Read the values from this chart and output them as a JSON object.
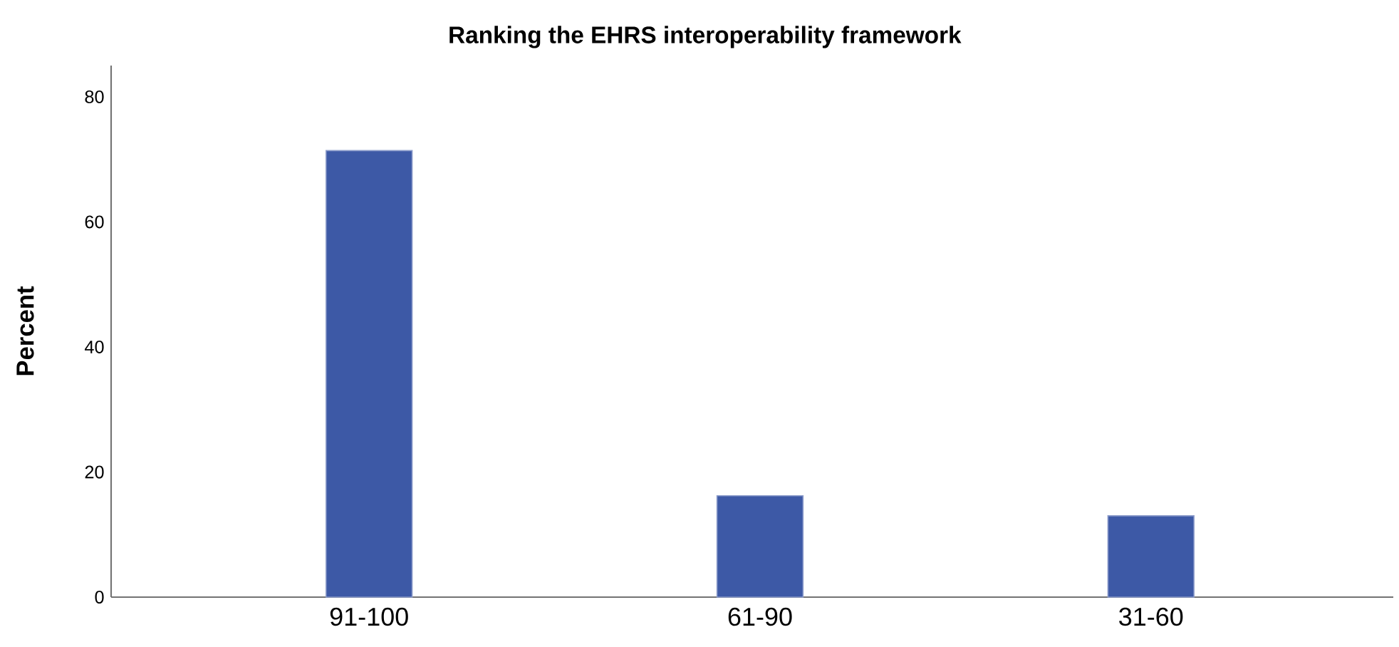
{
  "chart_data": {
    "type": "bar",
    "title": "Ranking the EHRS interoperability framework",
    "ylabel": "Percent",
    "categories": [
      "91-100",
      "61-90",
      "31-60"
    ],
    "values": [
      71.4,
      16.2,
      13.0
    ],
    "color": "#3d59a6",
    "ylim": [
      0,
      85
    ],
    "yticks": [
      0,
      20,
      40,
      60,
      80
    ]
  }
}
